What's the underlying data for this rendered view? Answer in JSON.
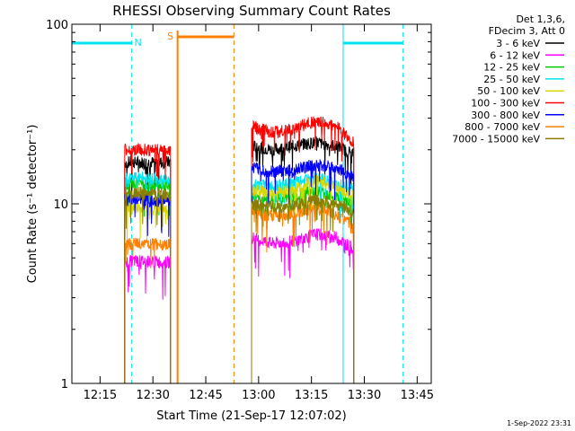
{
  "chart_data": {
    "type": "line",
    "title": "RHESSI Observing Summary Count Rates",
    "xlabel": "Start Time (21-Sep-17 12:07:02)",
    "ylabel": "Count Rate (s⁻¹ detector⁻¹)",
    "xscale": "time",
    "yscale": "log",
    "xlim": [
      "12:07",
      "13:49"
    ],
    "ylim": [
      1,
      100
    ],
    "x_ticks": [
      "12:15",
      "12:30",
      "12:45",
      "13:00",
      "13:15",
      "13:30",
      "13:45"
    ],
    "y_ticks": [
      "1",
      "10",
      "100"
    ],
    "legend_placement": "right",
    "info_lines": [
      "Det 1,3,6,",
      "FDecim 3, Att 0"
    ],
    "timestamp": "1-Sep-2022 23:31",
    "series": [
      {
        "name": "3 - 6 keV",
        "color": "#000000",
        "segments": [
          [
            {
              "t": "12:22",
              "v": 17
            },
            {
              "t": "12:28",
              "v": 17
            },
            {
              "t": "12:35",
              "v": 17
            }
          ],
          [
            {
              "t": "12:58",
              "v": 21
            },
            {
              "t": "13:04",
              "v": 20
            },
            {
              "t": "13:10",
              "v": 21
            },
            {
              "t": "13:16",
              "v": 22
            },
            {
              "t": "13:22",
              "v": 21
            },
            {
              "t": "13:27",
              "v": 19
            }
          ]
        ]
      },
      {
        "name": "6 - 12 keV",
        "color": "#ff00ff",
        "segments": [
          [
            {
              "t": "12:22",
              "v": 4.8
            },
            {
              "t": "12:28",
              "v": 4.8
            },
            {
              "t": "12:35",
              "v": 4.7
            }
          ],
          [
            {
              "t": "12:58",
              "v": 6.5
            },
            {
              "t": "13:04",
              "v": 6.0
            },
            {
              "t": "13:10",
              "v": 6.2
            },
            {
              "t": "13:16",
              "v": 6.8
            },
            {
              "t": "13:22",
              "v": 6.5
            },
            {
              "t": "13:27",
              "v": 5.6
            }
          ]
        ]
      },
      {
        "name": "12 - 25 keV",
        "color": "#00cc00",
        "segments": [
          [
            {
              "t": "12:22",
              "v": 13
            },
            {
              "t": "12:28",
              "v": 13
            },
            {
              "t": "12:35",
              "v": 12.5
            }
          ],
          [
            {
              "t": "12:58",
              "v": 11
            },
            {
              "t": "13:04",
              "v": 10.5
            },
            {
              "t": "13:10",
              "v": 11
            },
            {
              "t": "13:16",
              "v": 12
            },
            {
              "t": "13:22",
              "v": 11
            },
            {
              "t": "13:27",
              "v": 10
            }
          ]
        ]
      },
      {
        "name": "25 - 50 keV",
        "color": "#00e5ee",
        "segments": [
          [
            {
              "t": "12:22",
              "v": 14
            },
            {
              "t": "12:28",
              "v": 14
            },
            {
              "t": "12:35",
              "v": 13.5
            }
          ],
          [
            {
              "t": "12:58",
              "v": 13
            },
            {
              "t": "13:04",
              "v": 12.5
            },
            {
              "t": "13:10",
              "v": 13
            },
            {
              "t": "13:16",
              "v": 14
            },
            {
              "t": "13:22",
              "v": 13
            },
            {
              "t": "13:27",
              "v": 12
            }
          ]
        ]
      },
      {
        "name": "50 - 100 keV",
        "color": "#d8d800",
        "segments": [
          [
            {
              "t": "12:22",
              "v": 9.5
            },
            {
              "t": "12:28",
              "v": 9.5
            },
            {
              "t": "12:35",
              "v": 9.3
            }
          ],
          [
            {
              "t": "12:58",
              "v": 12
            },
            {
              "t": "13:04",
              "v": 11.5
            },
            {
              "t": "13:10",
              "v": 12
            },
            {
              "t": "13:16",
              "v": 13.5
            },
            {
              "t": "13:22",
              "v": 12.5
            },
            {
              "t": "13:27",
              "v": 11
            }
          ]
        ]
      },
      {
        "name": "100 - 300 keV",
        "color": "#ff0000",
        "segments": [
          [
            {
              "t": "12:22",
              "v": 20
            },
            {
              "t": "12:28",
              "v": 20
            },
            {
              "t": "12:35",
              "v": 20
            }
          ],
          [
            {
              "t": "12:58",
              "v": 27
            },
            {
              "t": "13:04",
              "v": 25
            },
            {
              "t": "13:10",
              "v": 26
            },
            {
              "t": "13:16",
              "v": 29
            },
            {
              "t": "13:22",
              "v": 27
            },
            {
              "t": "13:27",
              "v": 22
            }
          ]
        ]
      },
      {
        "name": "300 - 800 keV",
        "color": "#0000ff",
        "segments": [
          [
            {
              "t": "12:22",
              "v": 10.5
            },
            {
              "t": "12:28",
              "v": 10.5
            },
            {
              "t": "12:35",
              "v": 10.3
            }
          ],
          [
            {
              "t": "12:58",
              "v": 16
            },
            {
              "t": "13:04",
              "v": 15
            },
            {
              "t": "13:10",
              "v": 15.5
            },
            {
              "t": "13:16",
              "v": 16.5
            },
            {
              "t": "13:22",
              "v": 16
            },
            {
              "t": "13:27",
              "v": 14
            }
          ]
        ]
      },
      {
        "name": "800 - 7000 keV",
        "color": "#ff8000",
        "segments": [
          [
            {
              "t": "12:22",
              "v": 6
            },
            {
              "t": "12:28",
              "v": 6
            },
            {
              "t": "12:35",
              "v": 5.9
            }
          ],
          [
            {
              "t": "12:58",
              "v": 9
            },
            {
              "t": "13:04",
              "v": 8.5
            },
            {
              "t": "13:10",
              "v": 8.8
            },
            {
              "t": "13:16",
              "v": 9.5
            },
            {
              "t": "13:22",
              "v": 8.7
            },
            {
              "t": "13:27",
              "v": 7.5
            }
          ]
        ]
      },
      {
        "name": "7000 - 15000 keV",
        "color": "#8b7d00",
        "segments": [
          [
            {
              "t": "12:22",
              "v": 11.5
            },
            {
              "t": "12:28",
              "v": 11.5
            },
            {
              "t": "12:35",
              "v": 11.2
            }
          ],
          [
            {
              "t": "12:58",
              "v": 10
            },
            {
              "t": "13:04",
              "v": 9.6
            },
            {
              "t": "13:10",
              "v": 9.8
            },
            {
              "t": "13:16",
              "v": 10.5
            },
            {
              "t": "13:22",
              "v": 10
            },
            {
              "t": "13:27",
              "v": 9
            }
          ]
        ]
      }
    ],
    "annotations": [
      {
        "label": "N",
        "color": "#00e5ee",
        "kind": "night",
        "start": "12:07",
        "end": "12:24"
      },
      {
        "label": "",
        "color": "#00e5ee",
        "kind": "night",
        "start": "13:24",
        "end": "13:41"
      },
      {
        "label": "S",
        "color": "#ff8000",
        "kind": "saa",
        "start": "12:37",
        "end": "12:53"
      }
    ]
  }
}
